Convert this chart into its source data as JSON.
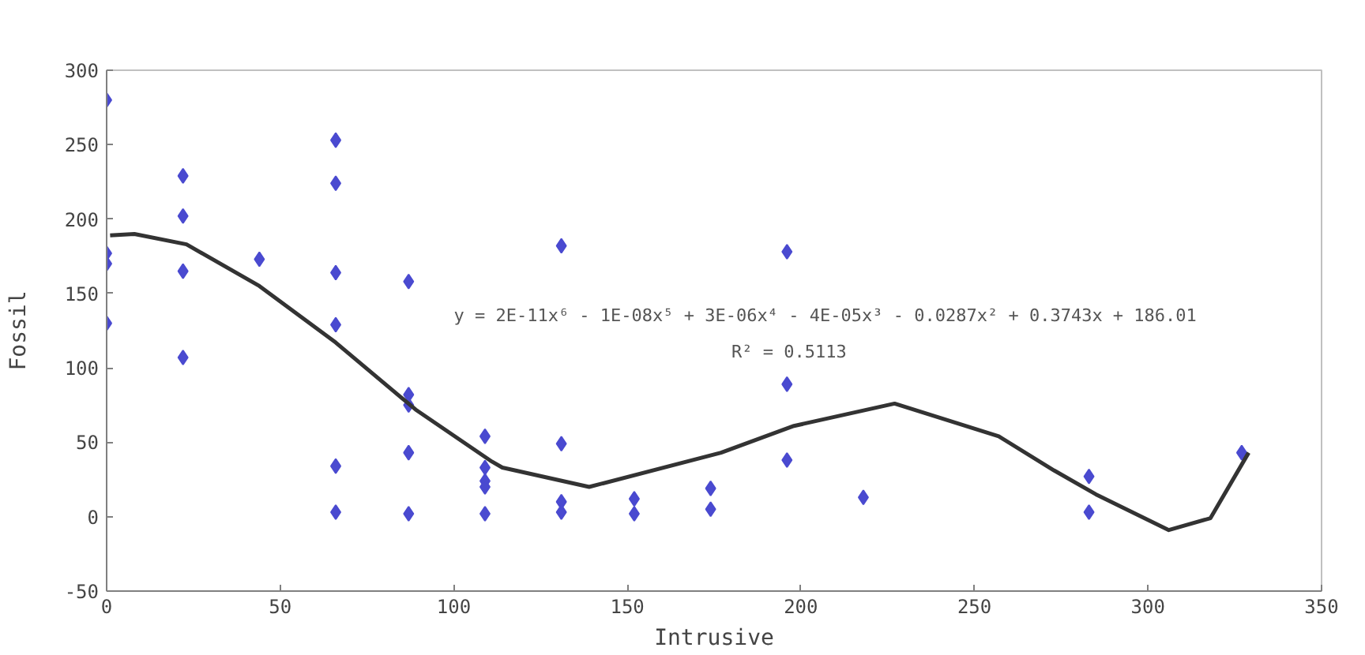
{
  "chart_data": {
    "type": "scatter",
    "xlabel": "Intrusive",
    "ylabel": "Fossil",
    "xlim": [
      0,
      350
    ],
    "ylim": [
      -50,
      300
    ],
    "xticks": [
      0,
      50,
      100,
      150,
      200,
      250,
      300,
      350
    ],
    "yticks": [
      -50,
      0,
      50,
      100,
      150,
      200,
      250,
      300
    ],
    "grid": false,
    "marker": "diamond",
    "annotations": [
      "y = 2E-11x⁶ - 1E-08x⁵ + 3E-06x⁴ - 4E-05x³ - 0.0287x² + 0.3743x + 186.01",
      "R² = 0.5113"
    ],
    "series": [
      {
        "type": "scatter",
        "color": "#4a4ad0",
        "x": [
          0,
          0,
          0,
          0,
          22,
          22,
          22,
          22,
          44,
          66,
          66,
          66,
          66,
          66,
          66,
          87,
          87,
          87,
          87,
          87,
          109,
          109,
          109,
          109,
          109,
          131,
          131,
          131,
          131,
          152,
          152,
          174,
          174,
          196,
          196,
          196,
          218,
          283,
          283,
          327
        ],
        "values": [
          280,
          177,
          170,
          130,
          229,
          202,
          165,
          107,
          173,
          253,
          224,
          164,
          129,
          34,
          3,
          158,
          82,
          75,
          43,
          2,
          54,
          33,
          24,
          20,
          2,
          182,
          49,
          10,
          3,
          12,
          2,
          19,
          5,
          178,
          89,
          38,
          13,
          27,
          3,
          43
        ]
      },
      {
        "type": "line",
        "color": "#333333",
        "marker": "none",
        "line_style": "solid",
        "x": [
          1,
          8,
          23,
          44,
          66,
          89,
          111,
          114,
          139,
          177,
          198,
          227,
          257,
          273,
          285,
          306,
          318,
          329
        ],
        "values": [
          189,
          190,
          183,
          155,
          117,
          72,
          37,
          33,
          20,
          43,
          61,
          76,
          54,
          31,
          15,
          -9,
          -1,
          43
        ]
      }
    ]
  }
}
